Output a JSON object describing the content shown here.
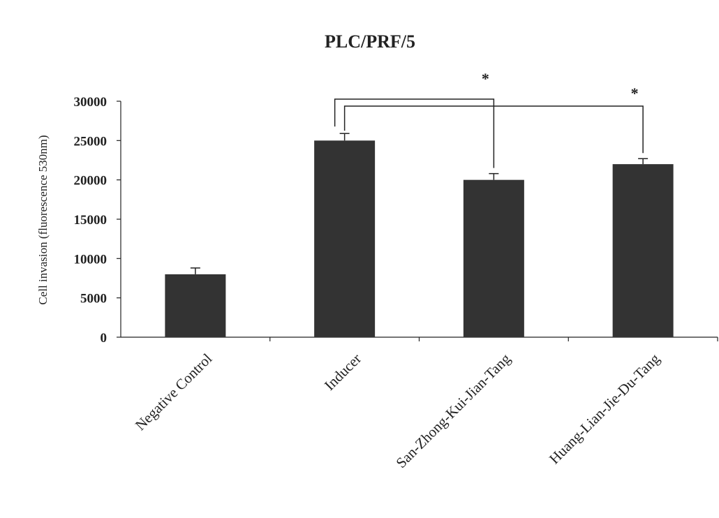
{
  "chart_data": {
    "type": "bar",
    "title": "PLC/PRF/5",
    "xlabel": "",
    "ylabel": "Cell invasion (fluorescence 530nm)",
    "categories": [
      "Negative Control",
      "Inducer",
      "San-Zhong-Kui-Jian-Tang",
      "Huang-Lian-Jie-Du-Tang"
    ],
    "values": [
      8000,
      25000,
      20000,
      22000
    ],
    "errors": [
      800,
      900,
      800,
      700
    ],
    "ylim": [
      0,
      30000
    ],
    "yticks": [
      "0",
      "5000",
      "10000",
      "15000",
      "20000",
      "25000",
      "30000"
    ],
    "grid": false,
    "bar_color": "#333333",
    "significance": [
      {
        "from": "Inducer",
        "to": "San-Zhong-Kui-Jian-Tang",
        "label": "*"
      },
      {
        "from": "Inducer",
        "to": "Huang-Lian-Jie-Du-Tang",
        "label": "*"
      }
    ]
  }
}
